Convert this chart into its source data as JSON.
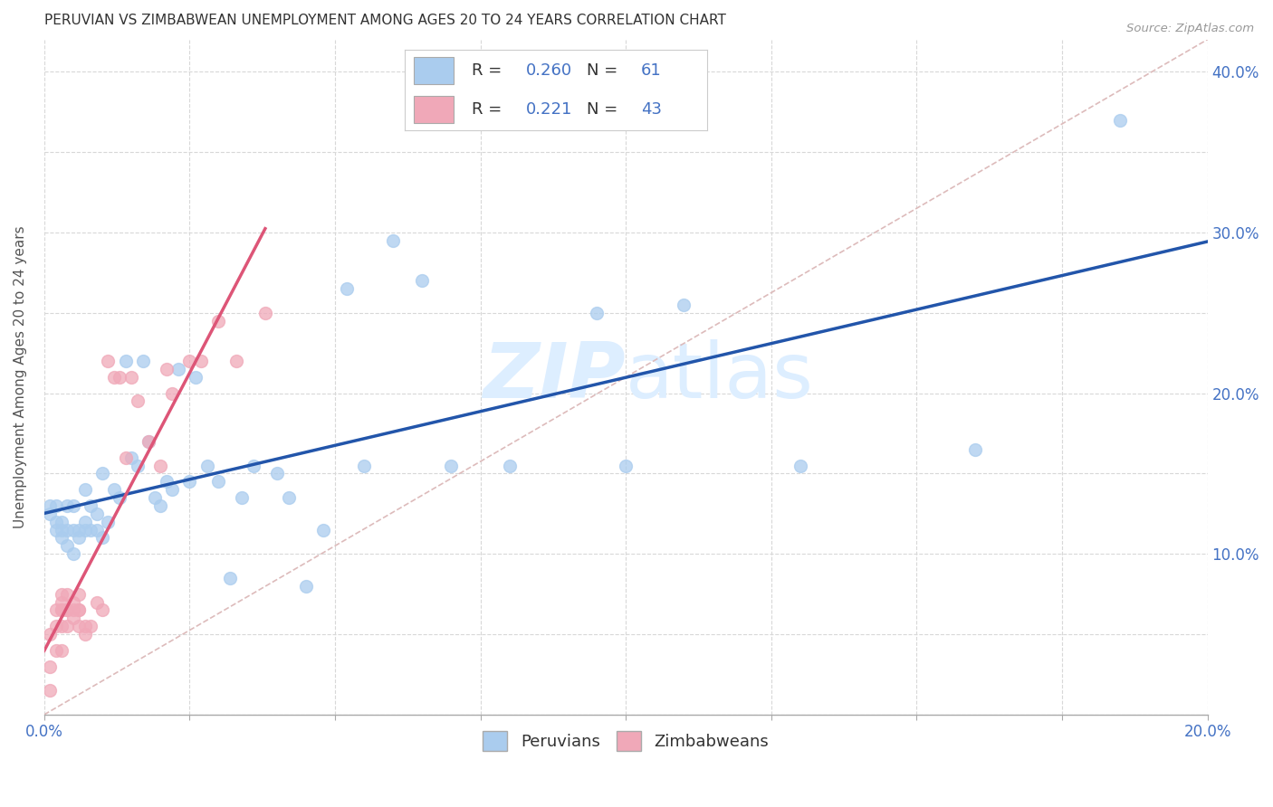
{
  "title": "PERUVIAN VS ZIMBABWEAN UNEMPLOYMENT AMONG AGES 20 TO 24 YEARS CORRELATION CHART",
  "source": "Source: ZipAtlas.com",
  "ylabel": "Unemployment Among Ages 20 to 24 years",
  "xlim": [
    0.0,
    0.2
  ],
  "ylim": [
    0.0,
    0.42
  ],
  "peru_R": 0.26,
  "peru_N": 61,
  "zimb_R": 0.221,
  "zimb_N": 43,
  "peru_color": "#aaccee",
  "zimb_color": "#f0a8b8",
  "peru_line_color": "#2255aa",
  "zimb_line_color": "#dd5577",
  "ref_line_color": "#ddbbbb",
  "watermark_color": "#ddeeff",
  "background_color": "#ffffff",
  "peru_x": [
    0.001,
    0.001,
    0.002,
    0.002,
    0.002,
    0.003,
    0.003,
    0.003,
    0.004,
    0.004,
    0.004,
    0.005,
    0.005,
    0.005,
    0.006,
    0.006,
    0.007,
    0.007,
    0.007,
    0.008,
    0.008,
    0.009,
    0.009,
    0.01,
    0.01,
    0.011,
    0.012,
    0.013,
    0.014,
    0.015,
    0.016,
    0.017,
    0.018,
    0.019,
    0.02,
    0.021,
    0.022,
    0.023,
    0.025,
    0.026,
    0.028,
    0.03,
    0.032,
    0.034,
    0.036,
    0.04,
    0.042,
    0.045,
    0.048,
    0.052,
    0.055,
    0.06,
    0.065,
    0.07,
    0.08,
    0.095,
    0.1,
    0.11,
    0.13,
    0.16,
    0.185
  ],
  "peru_y": [
    0.125,
    0.13,
    0.12,
    0.115,
    0.13,
    0.11,
    0.115,
    0.12,
    0.105,
    0.115,
    0.13,
    0.1,
    0.115,
    0.13,
    0.11,
    0.115,
    0.115,
    0.12,
    0.14,
    0.115,
    0.13,
    0.125,
    0.115,
    0.11,
    0.15,
    0.12,
    0.14,
    0.135,
    0.22,
    0.16,
    0.155,
    0.22,
    0.17,
    0.135,
    0.13,
    0.145,
    0.14,
    0.215,
    0.145,
    0.21,
    0.155,
    0.145,
    0.085,
    0.135,
    0.155,
    0.15,
    0.135,
    0.08,
    0.115,
    0.265,
    0.155,
    0.295,
    0.27,
    0.155,
    0.155,
    0.25,
    0.155,
    0.255,
    0.155,
    0.165,
    0.37
  ],
  "zimb_x": [
    0.001,
    0.001,
    0.001,
    0.002,
    0.002,
    0.002,
    0.003,
    0.003,
    0.003,
    0.003,
    0.003,
    0.003,
    0.004,
    0.004,
    0.004,
    0.004,
    0.005,
    0.005,
    0.005,
    0.006,
    0.006,
    0.006,
    0.006,
    0.007,
    0.007,
    0.008,
    0.009,
    0.01,
    0.011,
    0.012,
    0.013,
    0.014,
    0.015,
    0.016,
    0.018,
    0.02,
    0.021,
    0.022,
    0.025,
    0.027,
    0.03,
    0.033,
    0.038
  ],
  "zimb_y": [
    0.015,
    0.03,
    0.05,
    0.04,
    0.055,
    0.065,
    0.04,
    0.055,
    0.065,
    0.075,
    0.065,
    0.07,
    0.055,
    0.065,
    0.075,
    0.065,
    0.06,
    0.065,
    0.07,
    0.055,
    0.065,
    0.075,
    0.065,
    0.05,
    0.055,
    0.055,
    0.07,
    0.065,
    0.22,
    0.21,
    0.21,
    0.16,
    0.21,
    0.195,
    0.17,
    0.155,
    0.215,
    0.2,
    0.22,
    0.22,
    0.245,
    0.22,
    0.25
  ]
}
